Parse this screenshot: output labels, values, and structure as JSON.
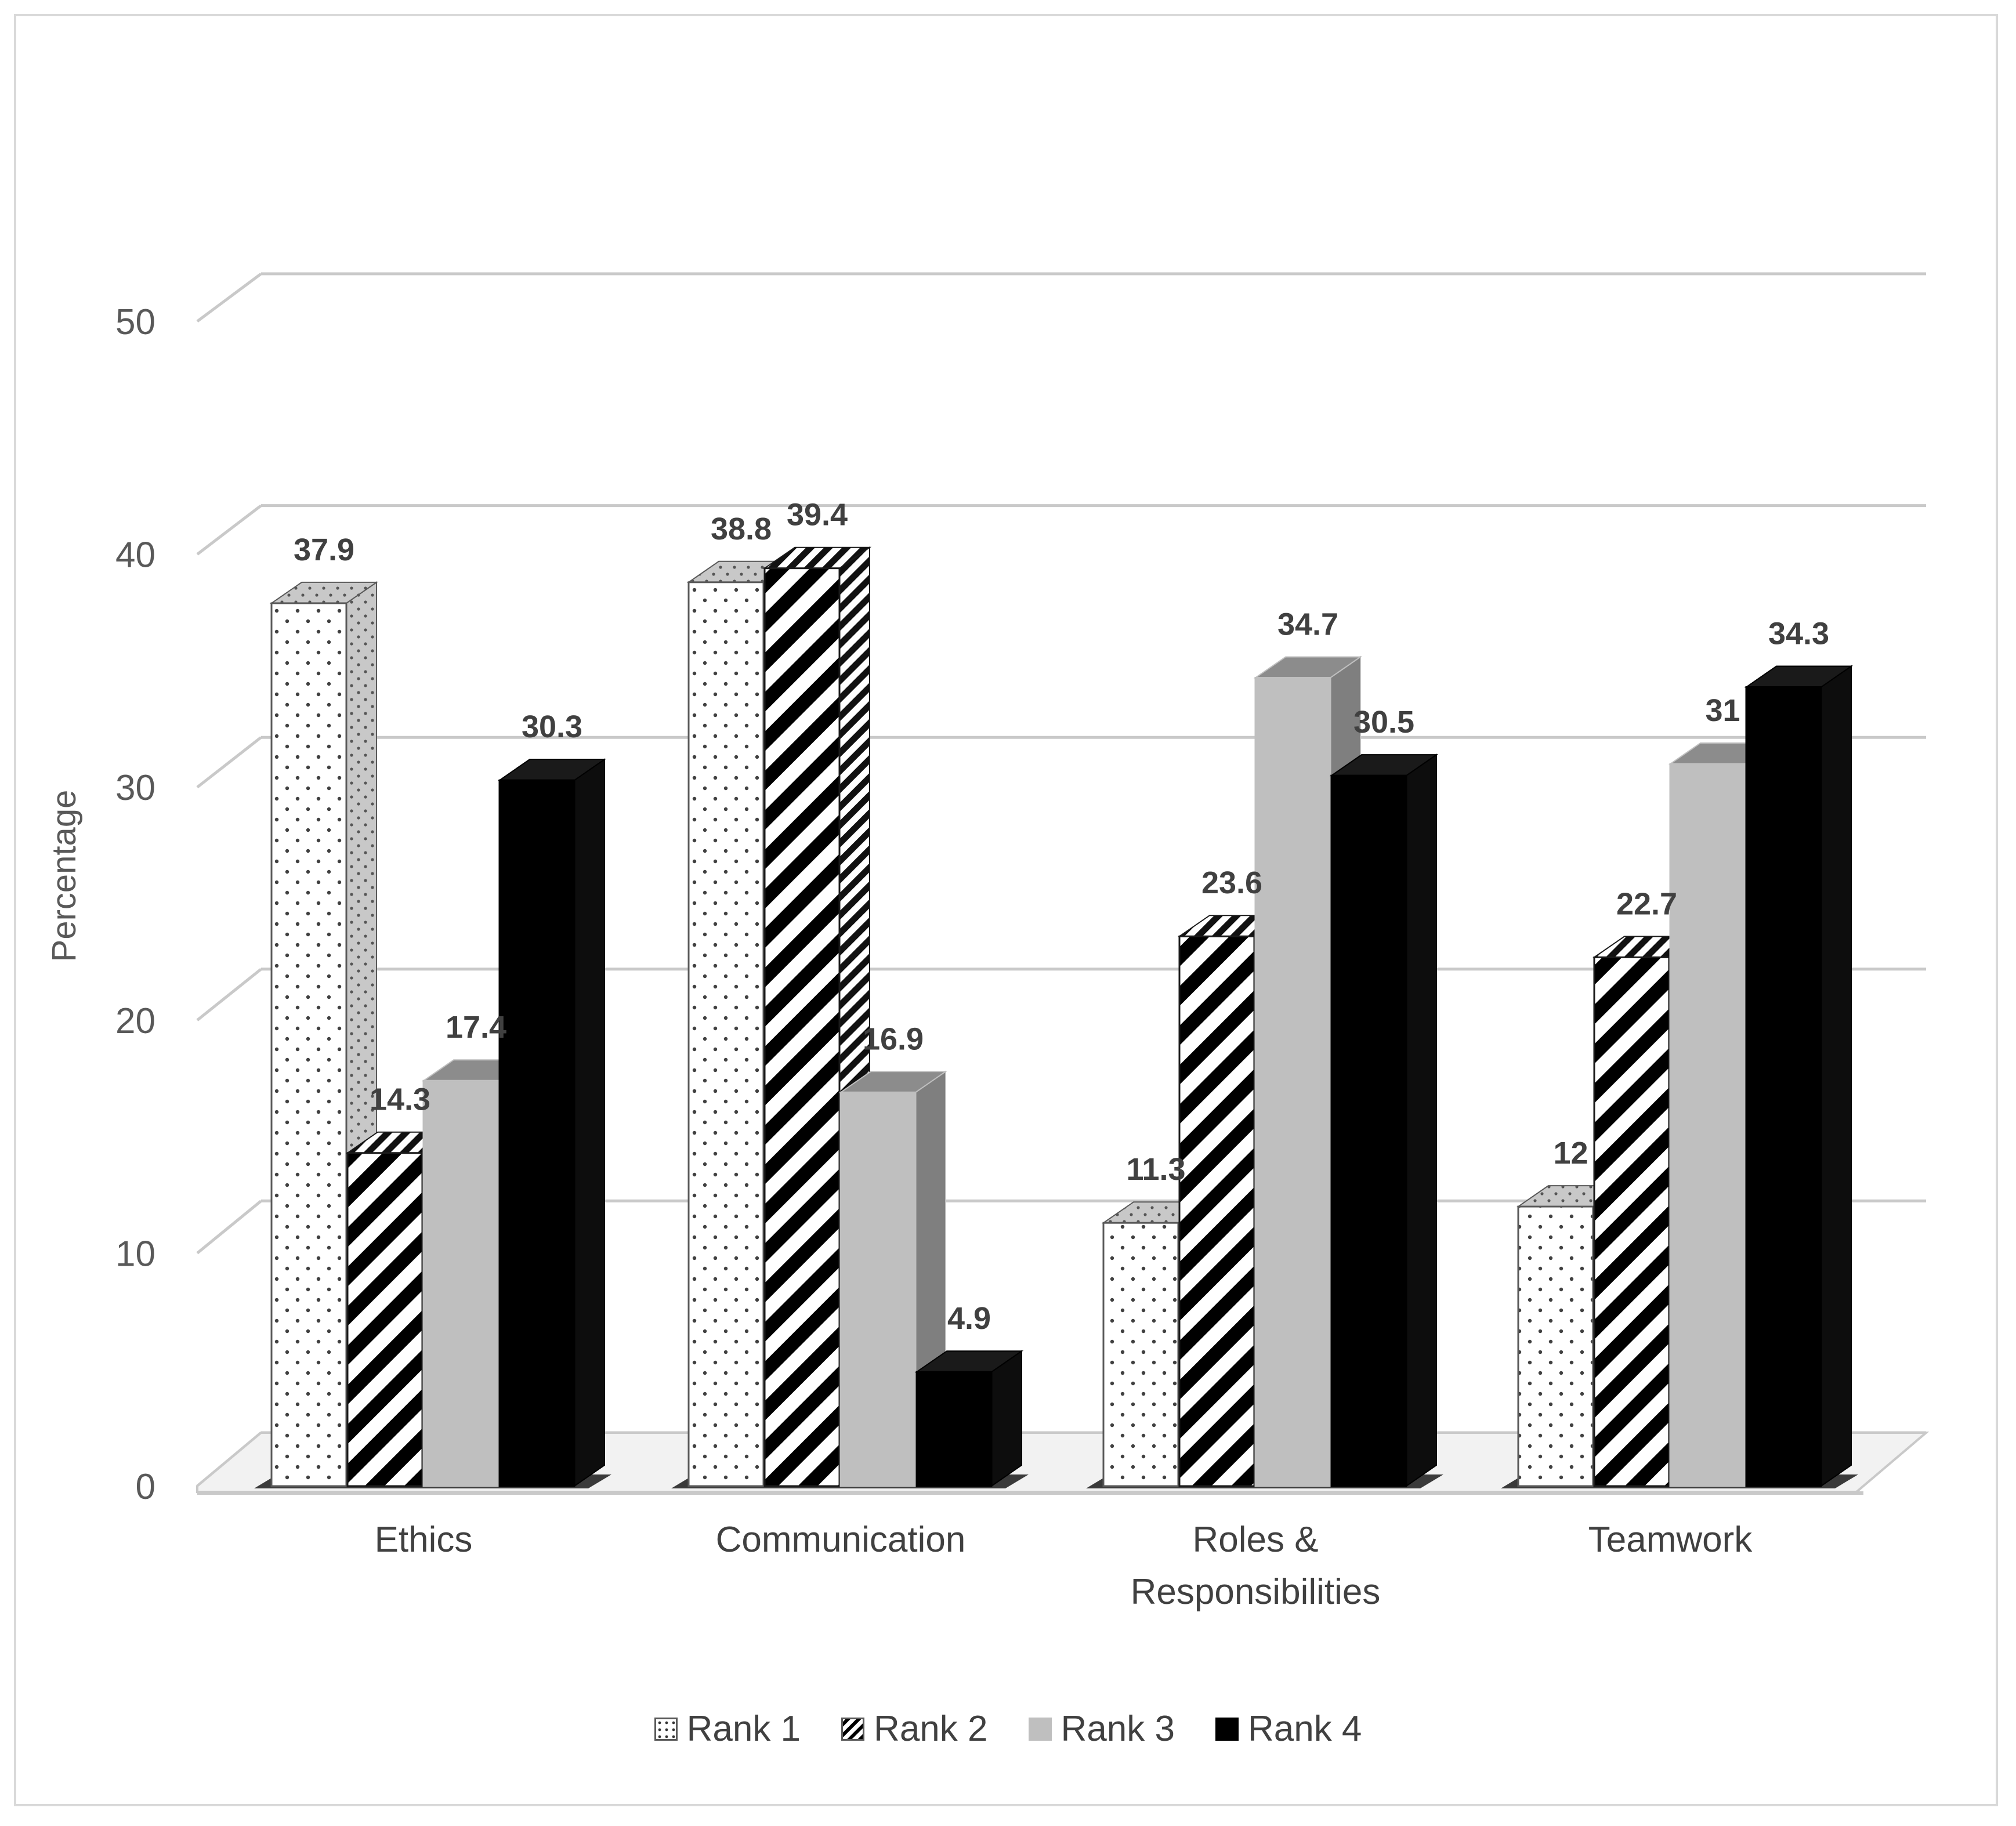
{
  "chart_data": {
    "type": "bar",
    "categories": [
      "Ethics",
      "Communication",
      "Roles & Responsibilities",
      "Teamwork"
    ],
    "category_lines": [
      [
        "Ethics"
      ],
      [
        "Communication"
      ],
      [
        "Roles &",
        "Responsibilities"
      ],
      [
        "Teamwork"
      ]
    ],
    "series": [
      {
        "name": "Rank 1",
        "values": [
          37.9,
          38.8,
          11.3,
          12
        ],
        "labels": [
          "37.9",
          "38.8",
          "11.3",
          "12"
        ],
        "fill": "dots",
        "color": "#ffffff"
      },
      {
        "name": "Rank 2",
        "values": [
          14.3,
          39.4,
          23.6,
          22.7
        ],
        "labels": [
          "14.3",
          "39.4",
          "23.6",
          "22.7"
        ],
        "fill": "diagonal-stripes",
        "color": "#000000"
      },
      {
        "name": "Rank 3",
        "values": [
          17.4,
          16.9,
          34.7,
          31
        ],
        "labels": [
          "17.4",
          "16.9",
          "34.7",
          "31"
        ],
        "fill": "solid",
        "color": "#bfbfbf"
      },
      {
        "name": "Rank 4",
        "values": [
          30.3,
          4.9,
          30.5,
          34.3
        ],
        "labels": [
          "30.3",
          "4.9",
          "30.5",
          "34.3"
        ],
        "fill": "solid",
        "color": "#000000"
      }
    ],
    "xlabel": "",
    "ylabel": "Percentage",
    "ylim": [
      0,
      50
    ],
    "yticks": [
      0,
      10,
      20,
      30,
      40,
      50
    ],
    "grid": true,
    "legend_position": "bottom",
    "style": "3d-clustered-column"
  },
  "legend": [
    {
      "label": "Rank 1",
      "swatch": "dots"
    },
    {
      "label": "Rank 2",
      "swatch": "hatch"
    },
    {
      "label": "Rank 3",
      "swatch": "gray"
    },
    {
      "label": "Rank 4",
      "swatch": "black"
    }
  ]
}
